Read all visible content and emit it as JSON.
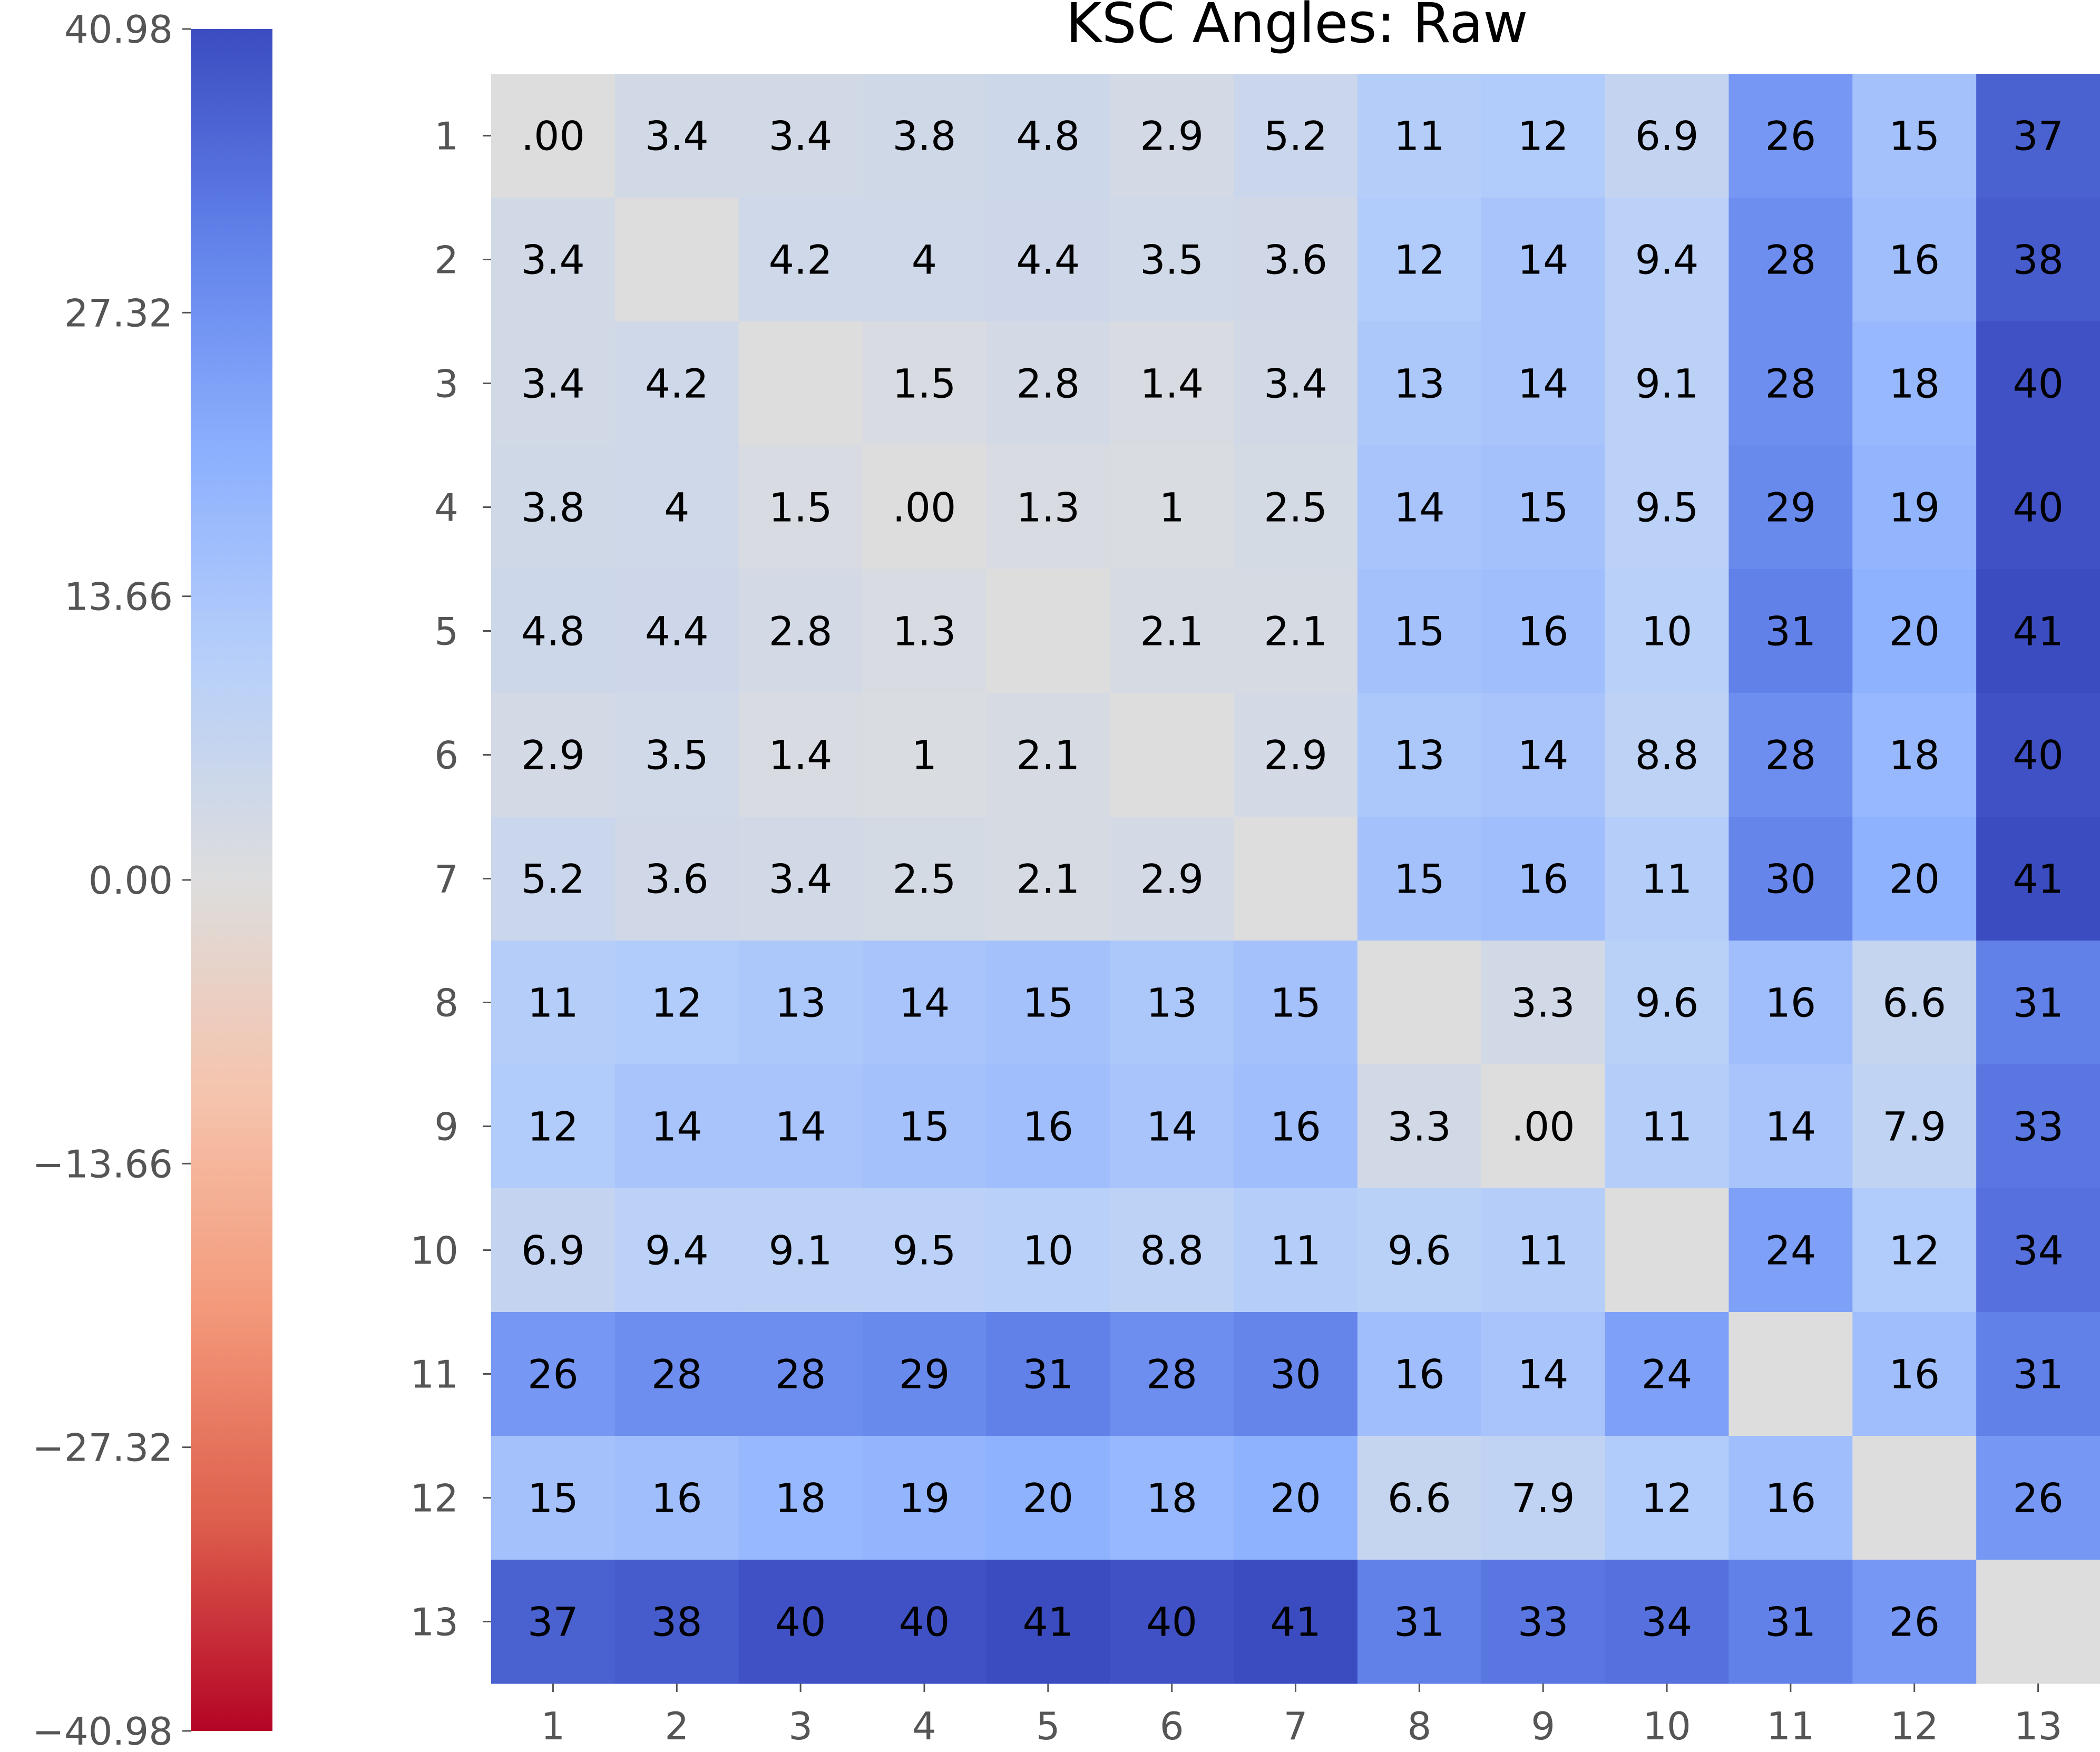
{
  "chart_data": {
    "type": "heatmap",
    "title": "KSC Angles: Raw",
    "xlabel": "",
    "ylabel": "",
    "row_labels": [
      "1",
      "2",
      "3",
      "4",
      "5",
      "6",
      "7",
      "8",
      "9",
      "10",
      "11",
      "12",
      "13"
    ],
    "col_labels": [
      "1",
      "2",
      "3",
      "4",
      "5",
      "6",
      "7",
      "8",
      "9",
      "10",
      "11",
      "12",
      "13"
    ],
    "values": [
      [
        0,
        3.4,
        3.4,
        3.8,
        4.8,
        2.9,
        5.2,
        11,
        12,
        6.9,
        26,
        15,
        37
      ],
      [
        3.4,
        null,
        4.2,
        4,
        4.4,
        3.5,
        3.6,
        12,
        14,
        9.4,
        28,
        16,
        38
      ],
      [
        3.4,
        4.2,
        null,
        1.5,
        2.8,
        1.4,
        3.4,
        13,
        14,
        9.1,
        28,
        18,
        40
      ],
      [
        3.8,
        4,
        1.5,
        0,
        1.3,
        1,
        2.5,
        14,
        15,
        9.5,
        29,
        19,
        40
      ],
      [
        4.8,
        4.4,
        2.8,
        1.3,
        null,
        2.1,
        2.1,
        15,
        16,
        10,
        31,
        20,
        41
      ],
      [
        2.9,
        3.5,
        1.4,
        1,
        2.1,
        null,
        2.9,
        13,
        14,
        8.8,
        28,
        18,
        40
      ],
      [
        5.2,
        3.6,
        3.4,
        2.5,
        2.1,
        2.9,
        null,
        15,
        16,
        11,
        30,
        20,
        41
      ],
      [
        11,
        12,
        13,
        14,
        15,
        13,
        15,
        null,
        3.3,
        9.6,
        16,
        6.6,
        31
      ],
      [
        12,
        14,
        14,
        15,
        16,
        14,
        16,
        3.3,
        0,
        11,
        14,
        7.9,
        33
      ],
      [
        6.9,
        9.4,
        9.1,
        9.5,
        10,
        8.8,
        11,
        9.6,
        11,
        null,
        24,
        12,
        34
      ],
      [
        26,
        28,
        28,
        29,
        31,
        28,
        30,
        16,
        14,
        24,
        null,
        16,
        31
      ],
      [
        15,
        16,
        18,
        19,
        20,
        18,
        20,
        6.6,
        7.9,
        12,
        16,
        null,
        26
      ],
      [
        37,
        38,
        40,
        40,
        41,
        40,
        41,
        31,
        33,
        34,
        31,
        26,
        null
      ]
    ],
    "cell_labels": [
      [
        ".00",
        "3.4",
        "3.4",
        "3.8",
        "4.8",
        "2.9",
        "5.2",
        "11",
        "12",
        "6.9",
        "26",
        "15",
        "37"
      ],
      [
        "3.4",
        "",
        "4.2",
        "4",
        "4.4",
        "3.5",
        "3.6",
        "12",
        "14",
        "9.4",
        "28",
        "16",
        "38"
      ],
      [
        "3.4",
        "4.2",
        "",
        "1.5",
        "2.8",
        "1.4",
        "3.4",
        "13",
        "14",
        "9.1",
        "28",
        "18",
        "40"
      ],
      [
        "3.8",
        "4",
        "1.5",
        ".00",
        "1.3",
        "1",
        "2.5",
        "14",
        "15",
        "9.5",
        "29",
        "19",
        "40"
      ],
      [
        "4.8",
        "4.4",
        "2.8",
        "1.3",
        "",
        "2.1",
        "2.1",
        "15",
        "16",
        "10",
        "31",
        "20",
        "41"
      ],
      [
        "2.9",
        "3.5",
        "1.4",
        "1",
        "2.1",
        "",
        "2.9",
        "13",
        "14",
        "8.8",
        "28",
        "18",
        "40"
      ],
      [
        "5.2",
        "3.6",
        "3.4",
        "2.5",
        "2.1",
        "2.9",
        "",
        "15",
        "16",
        "11",
        "30",
        "20",
        "41"
      ],
      [
        "11",
        "12",
        "13",
        "14",
        "15",
        "13",
        "15",
        "",
        "3.3",
        "9.6",
        "16",
        "6.6",
        "31"
      ],
      [
        "12",
        "14",
        "14",
        "15",
        "16",
        "14",
        "16",
        "3.3",
        ".00",
        "11",
        "14",
        "7.9",
        "33"
      ],
      [
        "6.9",
        "9.4",
        "9.1",
        "9.5",
        "10",
        "8.8",
        "11",
        "9.6",
        "11",
        "",
        "24",
        "12",
        "34"
      ],
      [
        "26",
        "28",
        "28",
        "29",
        "31",
        "28",
        "30",
        "16",
        "14",
        "24",
        "",
        "16",
        "31"
      ],
      [
        "15",
        "16",
        "18",
        "19",
        "20",
        "18",
        "20",
        "6.6",
        "7.9",
        "12",
        "16",
        "",
        "26"
      ],
      [
        "37",
        "38",
        "40",
        "40",
        "41",
        "40",
        "41",
        "31",
        "33",
        "34",
        "31",
        "26",
        ""
      ]
    ],
    "missing_color": "#dddddd",
    "colormap": "coolwarm",
    "colorbar": {
      "position": "left",
      "vmin": -40.98,
      "vmax": 40.98,
      "tick_values": [
        40.98,
        27.32,
        13.66,
        0,
        -13.66,
        -27.32,
        -40.98
      ],
      "tick_labels": [
        "40.98",
        "27.32",
        "13.66",
        "0.00",
        "−13.66",
        "−27.32",
        "−40.98"
      ]
    },
    "grid": false,
    "legend": "none"
  }
}
